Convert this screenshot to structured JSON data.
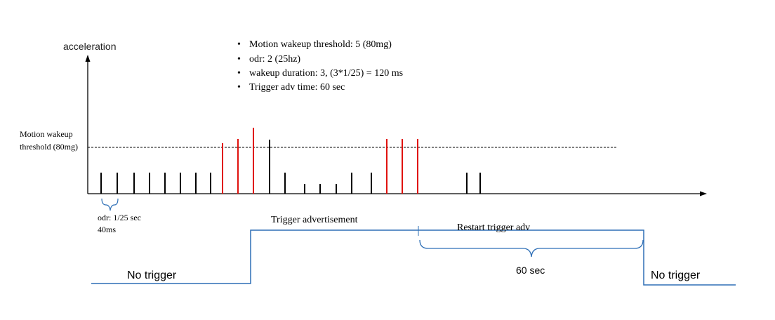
{
  "axis": {
    "y_label": "acceleration"
  },
  "notes": [
    "Motion wakeup threshold: 5  (80mg)",
    "odr: 2  (25hz)",
    "wakeup duration: 3,  (3*1/25) = 120 ms",
    "Trigger adv time: 60 sec"
  ],
  "threshold": {
    "label_line1": "Motion wakeup",
    "label_line2": "threshold (80mg)"
  },
  "odr_note": {
    "line1": "odr: 1/25 sec",
    "line2": "40ms"
  },
  "pulses": [
    {
      "level": "low",
      "color": "black"
    },
    {
      "level": "low",
      "color": "black"
    },
    {
      "level": "low",
      "color": "black"
    },
    {
      "level": "low",
      "color": "black"
    },
    {
      "level": "low",
      "color": "black"
    },
    {
      "level": "low",
      "color": "black"
    },
    {
      "level": "low",
      "color": "black"
    },
    {
      "level": "low",
      "color": "black"
    },
    {
      "level": "above",
      "color": "red"
    },
    {
      "level": "above",
      "color": "red"
    },
    {
      "level": "peak",
      "color": "red"
    },
    {
      "level": "high",
      "color": "black"
    },
    {
      "level": "low",
      "color": "black"
    },
    {
      "level": "small",
      "color": "black"
    },
    {
      "level": "small",
      "color": "black"
    },
    {
      "level": "small",
      "color": "black"
    },
    {
      "level": "low",
      "color": "black"
    },
    {
      "level": "low",
      "color": "black"
    },
    {
      "level": "above",
      "color": "red"
    },
    {
      "level": "above",
      "color": "red"
    },
    {
      "level": "above",
      "color": "red"
    },
    {
      "level": "low",
      "color": "black"
    },
    {
      "level": "low",
      "color": "black"
    }
  ],
  "timing": {
    "trigger_label": "Trigger advertisement",
    "restart_label": "Restart trigger adv",
    "duration_label": "60 sec",
    "no_trigger_left": "No trigger",
    "no_trigger_right": "No trigger"
  },
  "colors": {
    "pulse_black": "#000000",
    "pulse_red": "#e0120e",
    "signal_blue": "#2e6fb6",
    "brace_blue": "#2e6fb6"
  }
}
